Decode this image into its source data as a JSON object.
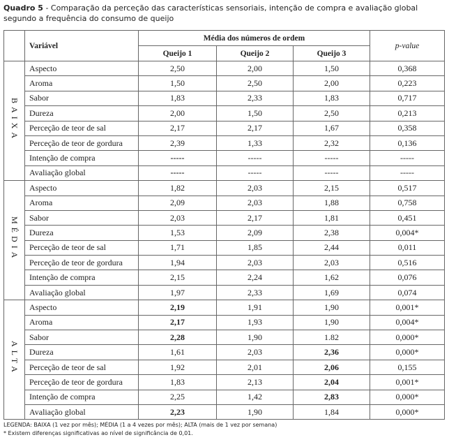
{
  "caption": {
    "label": "Quadro 5",
    "text": "- Comparação da perceção das características sensoriais, intenção de compra e avaliação global segundo a frequência do consumo de queijo"
  },
  "table": {
    "header": {
      "variable": "Variável",
      "group": "Média dos números de ordem",
      "columns": [
        "Queijo 1",
        "Queijo 2",
        "Queijo 3"
      ],
      "p_value": "p-value"
    },
    "groups": [
      {
        "label": "BAIXA",
        "rows": [
          [
            "Aspecto",
            "2,50",
            "2,00",
            "1,50",
            "0,368"
          ],
          [
            "Aroma",
            "1,50",
            "2,50",
            "2,00",
            "0,223"
          ],
          [
            "Sabor",
            "1,83",
            "2,33",
            "1,83",
            "0,717"
          ],
          [
            "Dureza",
            "2,00",
            "1,50",
            "2,50",
            "0,213"
          ],
          [
            "Perceção de teor de sal",
            "2,17",
            "2,17",
            "1,67",
            "0,358"
          ],
          [
            "Perceção de teor de gordura",
            "2,39",
            "1,33",
            "2,32",
            "0,136"
          ],
          [
            "Intenção de compra",
            {
              "text": "-----",
              "bold": true
            },
            "-----",
            "-----",
            "-----"
          ],
          [
            "Avaliação global",
            {
              "text": "-----",
              "bold": true
            },
            "-----",
            "-----",
            "-----"
          ]
        ]
      },
      {
        "label": "MÉDIA",
        "rows": [
          [
            "Aspecto",
            "1,82",
            "2,03",
            "2,15",
            "0,517"
          ],
          [
            "Aroma",
            "2,09",
            "2,03",
            "1,88",
            "0,758"
          ],
          [
            "Sabor",
            "2,03",
            "2,17",
            "1,81",
            "0,451"
          ],
          [
            "Dureza",
            "1,53",
            "2,09",
            "2,38",
            "0,004*"
          ],
          [
            "Perceção de teor de sal",
            "1,71",
            "1,85",
            "2,44",
            "0,011"
          ],
          [
            "Perceção de teor de gordura",
            "1,94",
            "2,03",
            "2,03",
            "0,516"
          ],
          [
            "Intenção de compra",
            "2,15",
            "2,24",
            "1,62",
            "0,076"
          ],
          [
            "Avaliação global",
            "1,97",
            "2,33",
            "1,69",
            "0,074"
          ]
        ]
      },
      {
        "label": "ALTA",
        "rows": [
          [
            "Aspecto",
            {
              "text": "2,19",
              "bold": true
            },
            "1,91",
            "1,90",
            "0,001*"
          ],
          [
            "Aroma",
            {
              "text": "2,17",
              "bold": true
            },
            "1,93",
            "1,90",
            "0,004*"
          ],
          [
            "Sabor",
            {
              "text": "2,28",
              "bold": true
            },
            "1,90",
            "1.82",
            "0,000*"
          ],
          [
            "Dureza",
            "1,61",
            "2,03",
            {
              "text": "2,36",
              "bold": true
            },
            "0,000*"
          ],
          [
            "Perceção de teor de sal",
            "1,92",
            "2,01",
            {
              "text": "2,06",
              "bold": true
            },
            "0,155"
          ],
          [
            "Perceção de teor de gordura",
            "1,83",
            "2,13",
            {
              "text": "2,04",
              "bold": true
            },
            "0,001*"
          ],
          [
            "Intenção de compra",
            "2,25",
            "1,42",
            {
              "text": "2,83",
              "bold": true
            },
            "0,000*"
          ],
          [
            "Avaliação global",
            {
              "text": "2,23",
              "bold": true
            },
            "1,90",
            "1,84",
            "0,000*"
          ]
        ]
      }
    ]
  },
  "footer": {
    "legend": "LEGENDA: BAIXA (1 vez por mês); MÉDIA (1 a 4 vezes por mês); ALTA (mais de 1 vez por semana)",
    "note": "* Existem diferenças significativas ao nível de significância de 0,01."
  }
}
